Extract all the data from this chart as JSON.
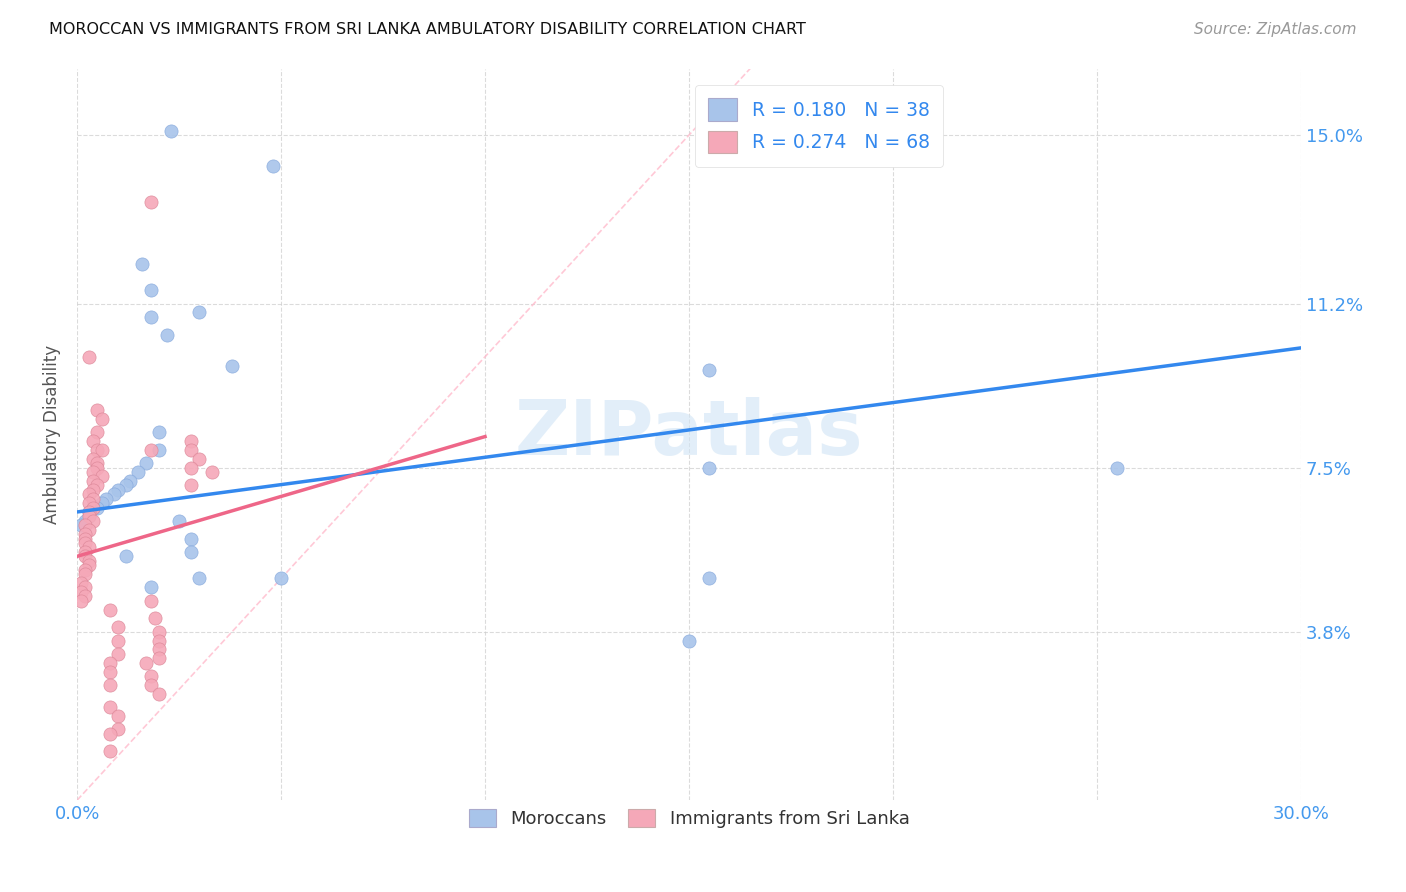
{
  "title": "MOROCCAN VS IMMIGRANTS FROM SRI LANKA AMBULATORY DISABILITY CORRELATION CHART",
  "source": "Source: ZipAtlas.com",
  "ylabel": "Ambulatory Disability",
  "yticks": [
    "15.0%",
    "11.2%",
    "7.5%",
    "3.8%"
  ],
  "ytick_vals": [
    0.15,
    0.112,
    0.075,
    0.038
  ],
  "xlim": [
    0.0,
    0.3
  ],
  "ylim": [
    0.0,
    0.165
  ],
  "moroccan_color": "#a8c4ea",
  "srilanka_color": "#f5a8b8",
  "moroccan_line_color": "#3388ee",
  "srilanka_line_color": "#ee6688",
  "watermark": "ZIPatlas",
  "moroccan_line": [
    [
      0.0,
      0.065
    ],
    [
      0.3,
      0.102
    ]
  ],
  "srilanka_line": [
    [
      0.0,
      0.055
    ],
    [
      0.1,
      0.082
    ]
  ],
  "diag_line": [
    [
      0.0,
      0.0
    ],
    [
      0.165,
      0.165
    ]
  ],
  "moroccan_scatter": [
    [
      0.023,
      0.151
    ],
    [
      0.048,
      0.143
    ],
    [
      0.016,
      0.121
    ],
    [
      0.018,
      0.115
    ],
    [
      0.018,
      0.109
    ],
    [
      0.022,
      0.105
    ],
    [
      0.03,
      0.11
    ],
    [
      0.038,
      0.098
    ],
    [
      0.02,
      0.083
    ],
    [
      0.02,
      0.079
    ],
    [
      0.017,
      0.076
    ],
    [
      0.015,
      0.074
    ],
    [
      0.013,
      0.072
    ],
    [
      0.012,
      0.071
    ],
    [
      0.01,
      0.07
    ],
    [
      0.009,
      0.069
    ],
    [
      0.007,
      0.068
    ],
    [
      0.006,
      0.067
    ],
    [
      0.005,
      0.066
    ],
    [
      0.004,
      0.066
    ],
    [
      0.003,
      0.065
    ],
    [
      0.003,
      0.064
    ],
    [
      0.002,
      0.063
    ],
    [
      0.002,
      0.062
    ],
    [
      0.001,
      0.062
    ],
    [
      0.025,
      0.063
    ],
    [
      0.028,
      0.059
    ],
    [
      0.028,
      0.056
    ],
    [
      0.018,
      0.048
    ],
    [
      0.03,
      0.05
    ],
    [
      0.05,
      0.05
    ],
    [
      0.155,
      0.075
    ],
    [
      0.255,
      0.075
    ],
    [
      0.155,
      0.05
    ],
    [
      0.15,
      0.036
    ],
    [
      0.155,
      0.145
    ],
    [
      0.155,
      0.097
    ],
    [
      0.012,
      0.055
    ]
  ],
  "srilanka_scatter": [
    [
      0.003,
      0.1
    ],
    [
      0.005,
      0.088
    ],
    [
      0.006,
      0.086
    ],
    [
      0.005,
      0.083
    ],
    [
      0.004,
      0.081
    ],
    [
      0.005,
      0.079
    ],
    [
      0.006,
      0.079
    ],
    [
      0.004,
      0.077
    ],
    [
      0.005,
      0.076
    ],
    [
      0.005,
      0.075
    ],
    [
      0.004,
      0.074
    ],
    [
      0.006,
      0.073
    ],
    [
      0.004,
      0.072
    ],
    [
      0.005,
      0.071
    ],
    [
      0.004,
      0.07
    ],
    [
      0.003,
      0.069
    ],
    [
      0.004,
      0.068
    ],
    [
      0.003,
      0.067
    ],
    [
      0.004,
      0.066
    ],
    [
      0.003,
      0.065
    ],
    [
      0.003,
      0.064
    ],
    [
      0.004,
      0.063
    ],
    [
      0.002,
      0.062
    ],
    [
      0.003,
      0.061
    ],
    [
      0.002,
      0.06
    ],
    [
      0.002,
      0.059
    ],
    [
      0.002,
      0.058
    ],
    [
      0.003,
      0.057
    ],
    [
      0.002,
      0.056
    ],
    [
      0.002,
      0.055
    ],
    [
      0.003,
      0.054
    ],
    [
      0.003,
      0.053
    ],
    [
      0.002,
      0.052
    ],
    [
      0.002,
      0.051
    ],
    [
      0.001,
      0.049
    ],
    [
      0.002,
      0.048
    ],
    [
      0.001,
      0.047
    ],
    [
      0.002,
      0.046
    ],
    [
      0.001,
      0.045
    ],
    [
      0.018,
      0.135
    ],
    [
      0.028,
      0.081
    ],
    [
      0.028,
      0.079
    ],
    [
      0.03,
      0.077
    ],
    [
      0.028,
      0.075
    ],
    [
      0.033,
      0.074
    ],
    [
      0.018,
      0.079
    ],
    [
      0.028,
      0.071
    ],
    [
      0.018,
      0.045
    ],
    [
      0.019,
      0.041
    ],
    [
      0.02,
      0.038
    ],
    [
      0.02,
      0.036
    ],
    [
      0.02,
      0.034
    ],
    [
      0.02,
      0.032
    ],
    [
      0.017,
      0.031
    ],
    [
      0.018,
      0.028
    ],
    [
      0.018,
      0.026
    ],
    [
      0.02,
      0.024
    ],
    [
      0.008,
      0.043
    ],
    [
      0.01,
      0.039
    ],
    [
      0.01,
      0.036
    ],
    [
      0.01,
      0.033
    ],
    [
      0.008,
      0.031
    ],
    [
      0.008,
      0.029
    ],
    [
      0.008,
      0.026
    ],
    [
      0.008,
      0.021
    ],
    [
      0.01,
      0.019
    ],
    [
      0.01,
      0.016
    ],
    [
      0.008,
      0.015
    ],
    [
      0.008,
      0.011
    ]
  ]
}
